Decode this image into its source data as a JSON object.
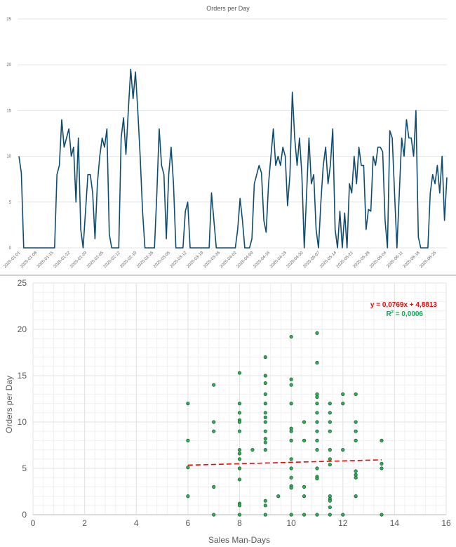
{
  "chart_data": [
    {
      "type": "line",
      "title": "Orders per Day",
      "xlabel": "",
      "ylabel": "",
      "ylim": [
        0,
        25
      ],
      "yticks": [
        "0",
        "5",
        "10",
        "15",
        "20",
        "25"
      ],
      "grid": true,
      "line_color": "#0f4c70",
      "xtick_labels": [
        "2025-01-01",
        "2025-01-08",
        "2025-01-15",
        "2025-01-22",
        "2025-01-29",
        "2025-02-05",
        "2025-02-12",
        "2025-02-19",
        "2025-02-26",
        "2025-03-05",
        "2025-03-12",
        "2025-03-19",
        "2025-03-26",
        "2025-04-02",
        "2025-04-09",
        "2025-04-16",
        "2025-04-23",
        "2025-04-30",
        "2025-05-07",
        "2025-05-14",
        "2025-05-21",
        "2025-05-28",
        "2025-06-04",
        "2025-06-11",
        "2025-06-18",
        "2025-06-25"
      ],
      "x": [
        "2025-01-01",
        "2025-01-02",
        "2025-01-03",
        "2025-01-04",
        "2025-01-05",
        "2025-01-06",
        "2025-01-07",
        "2025-01-08",
        "2025-01-09",
        "2025-01-10",
        "2025-01-11",
        "2025-01-12",
        "2025-01-13",
        "2025-01-14",
        "2025-01-15",
        "2025-01-16",
        "2025-01-17",
        "2025-01-18",
        "2025-01-19",
        "2025-01-20",
        "2025-01-21",
        "2025-01-22",
        "2025-01-23",
        "2025-01-24",
        "2025-01-25",
        "2025-01-26",
        "2025-01-27",
        "2025-01-28",
        "2025-01-29",
        "2025-01-30",
        "2025-01-31",
        "2025-02-01",
        "2025-02-02",
        "2025-02-03",
        "2025-02-04",
        "2025-02-05",
        "2025-02-06",
        "2025-02-07",
        "2025-02-08",
        "2025-02-09",
        "2025-02-10",
        "2025-02-11",
        "2025-02-12",
        "2025-02-13",
        "2025-02-14",
        "2025-02-15",
        "2025-02-16",
        "2025-02-17",
        "2025-02-18",
        "2025-02-19",
        "2025-02-20",
        "2025-02-21",
        "2025-02-22",
        "2025-02-23",
        "2025-02-24",
        "2025-02-25",
        "2025-02-26",
        "2025-02-27",
        "2025-02-28",
        "2025-03-01",
        "2025-03-02",
        "2025-03-03",
        "2025-03-04",
        "2025-03-05",
        "2025-03-06",
        "2025-03-07",
        "2025-03-08",
        "2025-03-09",
        "2025-03-10",
        "2025-03-11",
        "2025-03-12",
        "2025-03-13",
        "2025-03-14",
        "2025-03-15",
        "2025-03-16",
        "2025-03-17",
        "2025-03-18",
        "2025-03-19",
        "2025-03-20",
        "2025-03-21",
        "2025-03-22",
        "2025-03-23",
        "2025-03-24",
        "2025-03-25",
        "2025-03-26",
        "2025-03-27",
        "2025-03-28",
        "2025-03-29",
        "2025-03-30",
        "2025-03-31",
        "2025-04-01",
        "2025-04-02",
        "2025-04-03",
        "2025-04-04",
        "2025-04-05",
        "2025-04-06",
        "2025-04-07",
        "2025-04-08",
        "2025-04-09",
        "2025-04-10",
        "2025-04-11",
        "2025-04-12",
        "2025-04-13",
        "2025-04-14",
        "2025-04-15",
        "2025-04-16",
        "2025-04-17",
        "2025-04-18",
        "2025-04-19",
        "2025-04-20",
        "2025-04-21",
        "2025-04-22",
        "2025-04-23",
        "2025-04-24",
        "2025-04-25",
        "2025-04-26",
        "2025-04-27",
        "2025-04-28",
        "2025-04-29",
        "2025-04-30",
        "2025-05-01",
        "2025-05-02",
        "2025-05-03",
        "2025-05-04",
        "2025-05-05",
        "2025-05-06",
        "2025-05-07",
        "2025-05-08",
        "2025-05-09",
        "2025-05-10",
        "2025-05-11",
        "2025-05-12",
        "2025-05-13",
        "2025-05-14",
        "2025-05-15",
        "2025-05-16",
        "2025-05-17",
        "2025-05-18",
        "2025-05-19",
        "2025-05-20",
        "2025-05-21",
        "2025-05-22",
        "2025-05-23",
        "2025-05-24",
        "2025-05-25",
        "2025-05-26",
        "2025-05-27",
        "2025-05-28",
        "2025-05-29",
        "2025-05-30",
        "2025-05-31",
        "2025-06-01",
        "2025-06-02",
        "2025-06-03",
        "2025-06-04",
        "2025-06-05",
        "2025-06-06",
        "2025-06-07",
        "2025-06-08",
        "2025-06-09",
        "2025-06-10",
        "2025-06-11",
        "2025-06-12",
        "2025-06-13",
        "2025-06-14",
        "2025-06-15",
        "2025-06-16",
        "2025-06-17",
        "2025-06-18",
        "2025-06-19",
        "2025-06-20",
        "2025-06-21",
        "2025-06-22",
        "2025-06-23",
        "2025-06-24",
        "2025-06-25",
        "2025-06-26",
        "2025-06-27",
        "2025-06-28",
        "2025-06-29",
        "2025-06-30"
      ],
      "values": [
        10,
        8.2,
        0,
        0,
        0,
        0,
        0,
        0,
        0,
        0,
        0,
        0,
        0,
        0,
        0,
        0,
        8,
        9,
        14,
        11,
        12,
        13,
        10,
        11,
        5,
        12,
        2,
        0,
        4,
        8,
        8,
        6,
        1,
        7,
        10,
        12,
        11,
        13,
        1.5,
        0,
        0,
        0,
        0,
        12,
        14.2,
        10.2,
        15,
        19.5,
        16.3,
        19.2,
        15,
        10,
        4,
        0,
        0,
        0,
        0,
        0,
        6,
        13,
        9,
        8,
        1,
        8,
        11,
        7,
        0,
        0,
        0,
        0,
        4,
        5,
        0,
        0,
        0,
        0,
        0,
        0,
        0,
        0,
        0,
        6,
        3,
        0,
        0,
        0,
        0,
        0,
        0,
        0,
        0,
        0,
        2,
        5.4,
        3,
        0,
        0,
        0,
        1,
        7,
        8,
        9,
        8.2,
        3,
        1.7,
        7,
        10,
        13,
        9,
        10,
        9,
        11,
        10,
        4.6,
        8,
        17,
        12,
        9,
        12,
        8,
        0,
        6,
        12,
        7,
        8,
        2,
        0,
        5,
        9,
        11,
        7,
        9,
        13,
        2,
        0,
        4,
        0,
        3.8,
        0,
        7,
        6,
        10,
        7,
        11,
        9,
        9,
        2,
        4.2,
        4,
        10,
        9,
        11,
        11,
        10.5,
        3,
        0,
        12.8,
        12,
        6,
        0,
        6,
        12,
        10,
        14,
        12,
        12,
        10,
        15,
        1.2,
        0,
        0,
        0,
        0,
        6,
        8,
        7,
        9,
        6,
        10,
        3,
        7.7
      ]
    },
    {
      "type": "scatter",
      "title": "",
      "xlabel": "Sales Man-Days",
      "ylabel": "Orders per Day",
      "xlim": [
        0,
        16
      ],
      "ylim": [
        0,
        25
      ],
      "xticks": [
        "0",
        "2",
        "4",
        "6",
        "8",
        "10",
        "12",
        "14",
        "16"
      ],
      "yticks": [
        "0",
        "5",
        "10",
        "15",
        "20",
        "25"
      ],
      "grid": true,
      "minor_grid": true,
      "point_color": "#2db34a",
      "points": [
        [
          6,
          12
        ],
        [
          6,
          8
        ],
        [
          6,
          5.1
        ],
        [
          6,
          2
        ],
        [
          7,
          14
        ],
        [
          7,
          10
        ],
        [
          7,
          9
        ],
        [
          7,
          3
        ],
        [
          7,
          0
        ],
        [
          8,
          15.3
        ],
        [
          8,
          12
        ],
        [
          8,
          11
        ],
        [
          8,
          10.2
        ],
        [
          8,
          10
        ],
        [
          8,
          9
        ],
        [
          8,
          7
        ],
        [
          8,
          6.6
        ],
        [
          8,
          6
        ],
        [
          8,
          5
        ],
        [
          8,
          3.8
        ],
        [
          8,
          1.2
        ],
        [
          8,
          1
        ],
        [
          8,
          0
        ],
        [
          8.5,
          7
        ],
        [
          9,
          17
        ],
        [
          9,
          15
        ],
        [
          9,
          14.2
        ],
        [
          9,
          13
        ],
        [
          9,
          12
        ],
        [
          9,
          11
        ],
        [
          9,
          10.5
        ],
        [
          9,
          10
        ],
        [
          9,
          9
        ],
        [
          9,
          8.2
        ],
        [
          9,
          7.8
        ],
        [
          9,
          7
        ],
        [
          9,
          1.5
        ],
        [
          9,
          1
        ],
        [
          9,
          0
        ],
        [
          9.5,
          2
        ],
        [
          10,
          19.2
        ],
        [
          10,
          14.6
        ],
        [
          10,
          14
        ],
        [
          10,
          12
        ],
        [
          10,
          9.3
        ],
        [
          10,
          9
        ],
        [
          10,
          8
        ],
        [
          10,
          6
        ],
        [
          10,
          5
        ],
        [
          10,
          4
        ],
        [
          10,
          3.1
        ],
        [
          10,
          2.9
        ],
        [
          10,
          0
        ],
        [
          10.5,
          10
        ],
        [
          10.5,
          8
        ],
        [
          10.5,
          3
        ],
        [
          10.5,
          2
        ],
        [
          10.5,
          0
        ],
        [
          11,
          19.6
        ],
        [
          11,
          16.4
        ],
        [
          11,
          13
        ],
        [
          11,
          12.7
        ],
        [
          11,
          12
        ],
        [
          11,
          11
        ],
        [
          11,
          10
        ],
        [
          11,
          9
        ],
        [
          11,
          8
        ],
        [
          11,
          7
        ],
        [
          11,
          5
        ],
        [
          11,
          4.1
        ],
        [
          11,
          3.9
        ],
        [
          11,
          0
        ],
        [
          11.5,
          12
        ],
        [
          11.5,
          11
        ],
        [
          11.5,
          10
        ],
        [
          11.5,
          9
        ],
        [
          11.5,
          7
        ],
        [
          11.5,
          6
        ],
        [
          11.5,
          5.4
        ],
        [
          11.5,
          2
        ],
        [
          11.5,
          1.7
        ],
        [
          11.5,
          1.5
        ],
        [
          11.5,
          0.8
        ],
        [
          11.5,
          0
        ],
        [
          12,
          13
        ],
        [
          12,
          12
        ],
        [
          12,
          7
        ],
        [
          12,
          0
        ],
        [
          12.5,
          13
        ],
        [
          12.5,
          10
        ],
        [
          12.5,
          9
        ],
        [
          12.5,
          8
        ],
        [
          12.5,
          4.7
        ],
        [
          12.5,
          4.3
        ],
        [
          12.5,
          4
        ],
        [
          12.5,
          2
        ],
        [
          13.5,
          8
        ],
        [
          13.5,
          5.5
        ],
        [
          13.5,
          5
        ],
        [
          13.5,
          0
        ]
      ],
      "trendline": {
        "type": "linear",
        "slope": 0.0769,
        "intercept": 4.8813,
        "x_range": [
          6,
          13.5
        ],
        "color": "#ff0000",
        "style": "dashed",
        "equation_label": "y = 0,0769x + 4,8813",
        "r2_prefix": "R",
        "r2_sup": "2",
        "r2_value": " = 0,0006",
        "r2_color": "#00b050"
      }
    }
  ]
}
